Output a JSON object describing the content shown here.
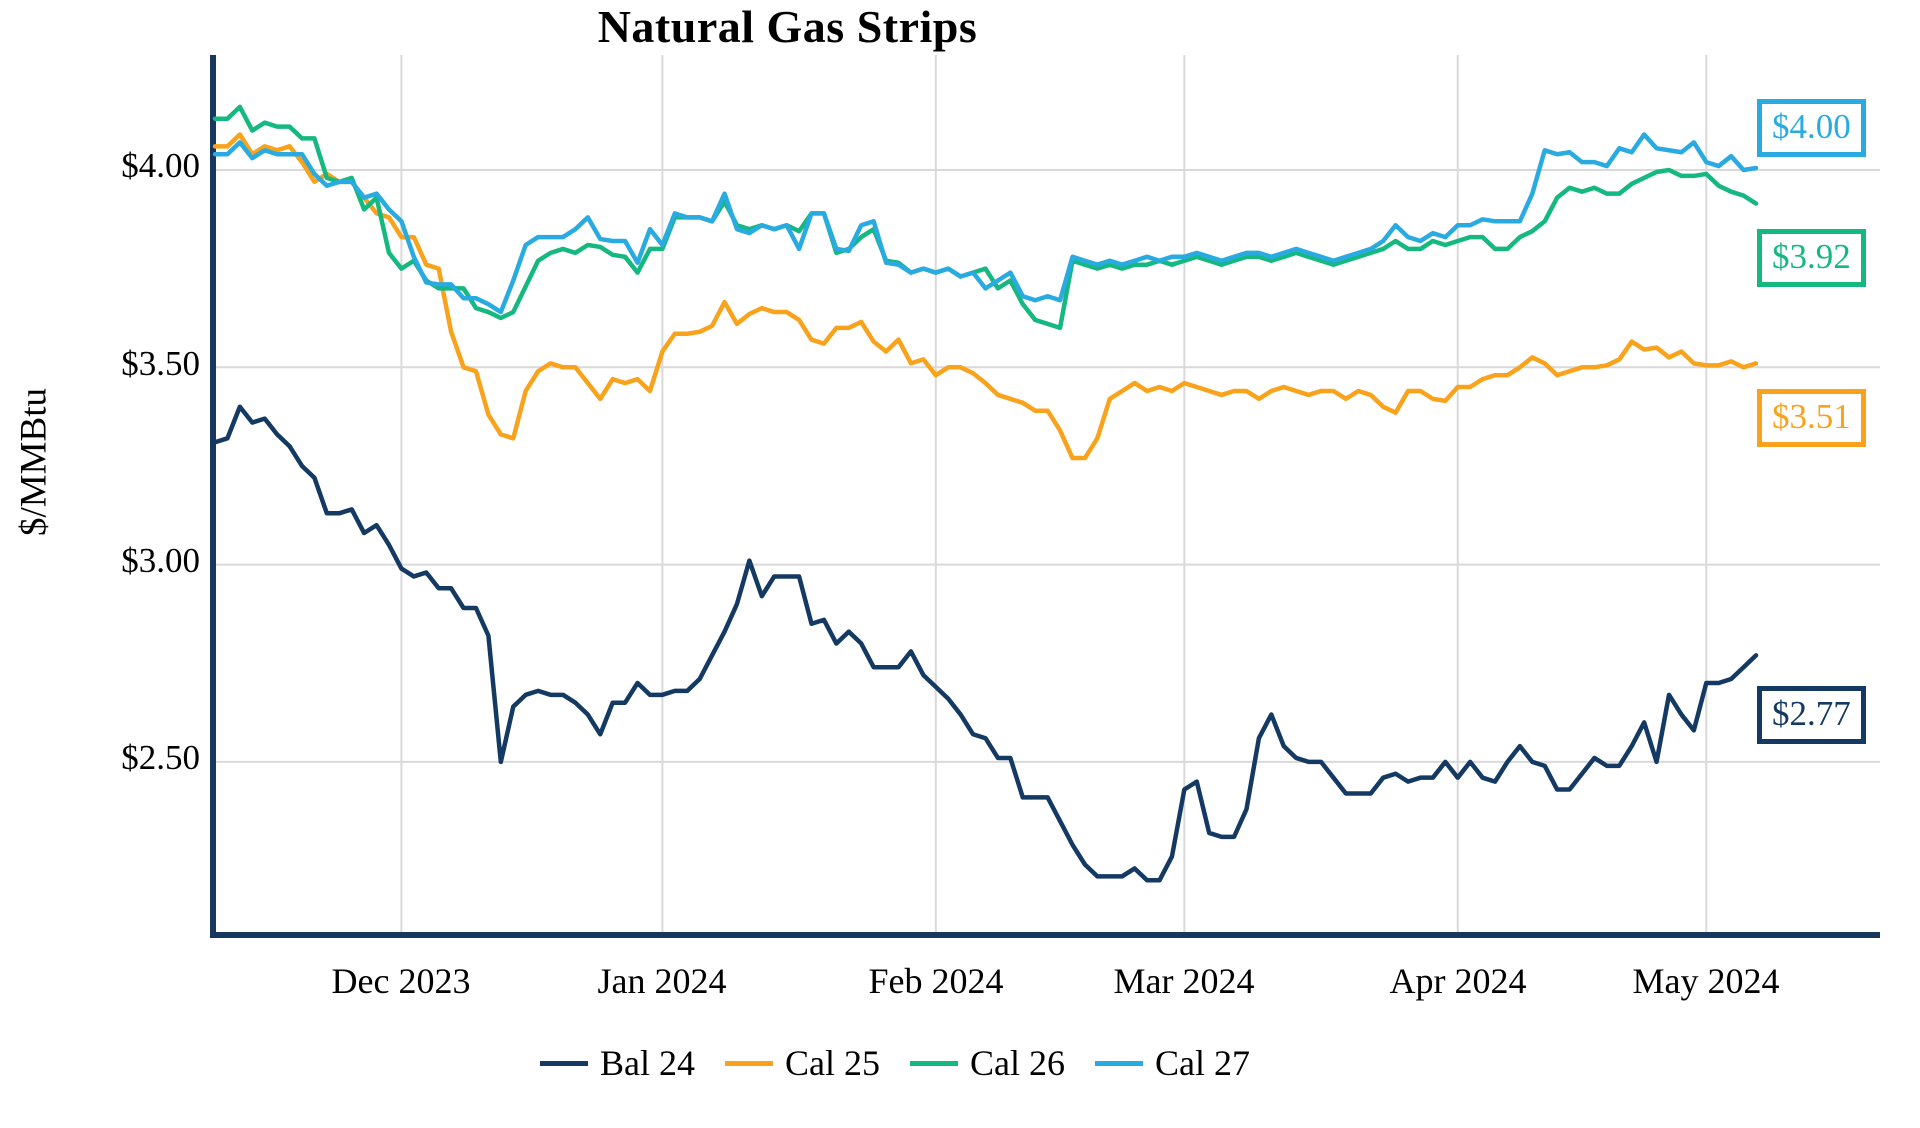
{
  "title": "Natural Gas Strips",
  "y_axis": {
    "label": "$/MMBtu",
    "ticks": [
      {
        "value": 4.0,
        "label": "$4.00"
      },
      {
        "value": 3.5,
        "label": "$3.50"
      },
      {
        "value": 3.0,
        "label": "$3.00"
      },
      {
        "value": 2.5,
        "label": "$2.50"
      }
    ]
  },
  "x_axis": {
    "ticks": [
      {
        "label": "Dec 2023",
        "index": 15
      },
      {
        "label": "Jan 2024",
        "index": 36
      },
      {
        "label": "Feb 2024",
        "index": 58
      },
      {
        "label": "Mar 2024",
        "index": 78
      },
      {
        "label": "Apr 2024",
        "index": 100
      },
      {
        "label": "May 2024",
        "index": 120
      }
    ]
  },
  "chart_data": {
    "type": "line",
    "title": "Natural Gas Strips",
    "xlabel": "",
    "ylabel": "$/MMBtu",
    "ylim": [
      2.0,
      4.3
    ],
    "x_range": [
      0,
      124
    ],
    "grid": true,
    "legend_position": "bottom",
    "axis_color": "#17375E",
    "grid_color": "#D9D9D9",
    "series": [
      {
        "name": "Bal 24",
        "color": "#143A63",
        "end_label": "$2.77",
        "values": [
          3.31,
          3.32,
          3.4,
          3.36,
          3.37,
          3.33,
          3.3,
          3.25,
          3.22,
          3.13,
          3.13,
          3.14,
          3.08,
          3.1,
          3.05,
          2.99,
          2.97,
          2.98,
          2.94,
          2.94,
          2.89,
          2.89,
          2.82,
          2.5,
          2.64,
          2.67,
          2.68,
          2.67,
          2.67,
          2.65,
          2.62,
          2.57,
          2.65,
          2.65,
          2.7,
          2.67,
          2.67,
          2.68,
          2.68,
          2.71,
          2.77,
          2.83,
          2.9,
          3.01,
          2.92,
          2.97,
          2.97,
          2.97,
          2.85,
          2.86,
          2.8,
          2.83,
          2.8,
          2.74,
          2.74,
          2.74,
          2.78,
          2.72,
          2.69,
          2.66,
          2.62,
          2.57,
          2.56,
          2.51,
          2.51,
          2.41,
          2.41,
          2.41,
          2.35,
          2.29,
          2.24,
          2.21,
          2.21,
          2.21,
          2.23,
          2.2,
          2.2,
          2.26,
          2.43,
          2.45,
          2.32,
          2.31,
          2.31,
          2.38,
          2.56,
          2.62,
          2.54,
          2.51,
          2.5,
          2.5,
          2.46,
          2.42,
          2.42,
          2.42,
          2.46,
          2.47,
          2.45,
          2.46,
          2.46,
          2.5,
          2.46,
          2.5,
          2.46,
          2.45,
          2.5,
          2.54,
          2.5,
          2.49,
          2.43,
          2.43,
          2.47,
          2.51,
          2.49,
          2.49,
          2.54,
          2.6,
          2.5,
          2.67,
          2.62,
          2.58,
          2.7,
          2.7,
          2.71,
          2.74,
          2.77
        ]
      },
      {
        "name": "Cal 25",
        "color": "#F9A21B",
        "end_label": "$3.51",
        "values": [
          4.06,
          4.06,
          4.09,
          4.04,
          4.06,
          4.05,
          4.06,
          4.02,
          3.97,
          3.99,
          3.97,
          3.97,
          3.93,
          3.89,
          3.88,
          3.83,
          3.83,
          3.76,
          3.75,
          3.59,
          3.5,
          3.49,
          3.38,
          3.33,
          3.32,
          3.44,
          3.49,
          3.51,
          3.5,
          3.5,
          3.46,
          3.42,
          3.47,
          3.46,
          3.47,
          3.44,
          3.54,
          3.585,
          3.585,
          3.59,
          3.605,
          3.665,
          3.61,
          3.635,
          3.65,
          3.64,
          3.64,
          3.62,
          3.57,
          3.56,
          3.6,
          3.6,
          3.615,
          3.565,
          3.54,
          3.57,
          3.51,
          3.52,
          3.48,
          3.5,
          3.5,
          3.485,
          3.46,
          3.43,
          3.42,
          3.41,
          3.39,
          3.39,
          3.34,
          3.27,
          3.27,
          3.32,
          3.42,
          3.44,
          3.46,
          3.44,
          3.45,
          3.44,
          3.46,
          3.45,
          3.44,
          3.43,
          3.44,
          3.44,
          3.42,
          3.44,
          3.45,
          3.44,
          3.43,
          3.44,
          3.44,
          3.42,
          3.44,
          3.43,
          3.4,
          3.385,
          3.44,
          3.44,
          3.42,
          3.415,
          3.45,
          3.45,
          3.47,
          3.48,
          3.48,
          3.5,
          3.525,
          3.51,
          3.48,
          3.49,
          3.5,
          3.5,
          3.505,
          3.52,
          3.565,
          3.545,
          3.55,
          3.525,
          3.54,
          3.51,
          3.505,
          3.505,
          3.515,
          3.5,
          3.51
        ]
      },
      {
        "name": "Cal 26",
        "color": "#15B87F",
        "end_label": "$3.92",
        "values": [
          4.13,
          4.13,
          4.16,
          4.1,
          4.12,
          4.11,
          4.11,
          4.08,
          4.08,
          3.98,
          3.97,
          3.98,
          3.9,
          3.93,
          3.79,
          3.75,
          3.77,
          3.72,
          3.7,
          3.7,
          3.7,
          3.65,
          3.64,
          3.625,
          3.64,
          3.705,
          3.77,
          3.79,
          3.8,
          3.79,
          3.81,
          3.805,
          3.785,
          3.78,
          3.74,
          3.8,
          3.8,
          3.88,
          3.88,
          3.88,
          3.87,
          3.92,
          3.86,
          3.85,
          3.86,
          3.85,
          3.86,
          3.845,
          3.89,
          3.89,
          3.79,
          3.8,
          3.83,
          3.85,
          3.77,
          3.765,
          3.74,
          3.75,
          3.74,
          3.75,
          3.73,
          3.74,
          3.75,
          3.7,
          3.72,
          3.66,
          3.62,
          3.61,
          3.6,
          3.77,
          3.76,
          3.75,
          3.76,
          3.75,
          3.76,
          3.76,
          3.77,
          3.76,
          3.77,
          3.78,
          3.77,
          3.76,
          3.77,
          3.78,
          3.78,
          3.77,
          3.78,
          3.79,
          3.78,
          3.77,
          3.76,
          3.77,
          3.78,
          3.79,
          3.8,
          3.82,
          3.8,
          3.8,
          3.82,
          3.81,
          3.82,
          3.83,
          3.83,
          3.8,
          3.8,
          3.83,
          3.845,
          3.87,
          3.93,
          3.955,
          3.945,
          3.955,
          3.94,
          3.94,
          3.965,
          3.98,
          3.995,
          4.0,
          3.985,
          3.985,
          3.99,
          3.96,
          3.945,
          3.935,
          3.915
        ]
      },
      {
        "name": "Cal 27",
        "color": "#29ABE2",
        "end_label": "$4.00",
        "values": [
          4.04,
          4.04,
          4.07,
          4.03,
          4.05,
          4.04,
          4.04,
          4.04,
          3.99,
          3.96,
          3.97,
          3.97,
          3.93,
          3.94,
          3.9,
          3.87,
          3.78,
          3.715,
          3.71,
          3.71,
          3.675,
          3.675,
          3.66,
          3.64,
          3.72,
          3.81,
          3.83,
          3.83,
          3.83,
          3.85,
          3.88,
          3.825,
          3.82,
          3.82,
          3.765,
          3.85,
          3.81,
          3.89,
          3.88,
          3.88,
          3.87,
          3.94,
          3.85,
          3.84,
          3.86,
          3.85,
          3.86,
          3.8,
          3.89,
          3.89,
          3.8,
          3.795,
          3.86,
          3.87,
          3.765,
          3.76,
          3.74,
          3.75,
          3.74,
          3.75,
          3.73,
          3.74,
          3.7,
          3.72,
          3.74,
          3.68,
          3.67,
          3.68,
          3.67,
          3.78,
          3.77,
          3.76,
          3.77,
          3.76,
          3.77,
          3.78,
          3.77,
          3.78,
          3.78,
          3.79,
          3.78,
          3.77,
          3.78,
          3.79,
          3.79,
          3.78,
          3.79,
          3.8,
          3.79,
          3.78,
          3.77,
          3.78,
          3.79,
          3.8,
          3.82,
          3.86,
          3.83,
          3.82,
          3.84,
          3.83,
          3.86,
          3.86,
          3.875,
          3.87,
          3.87,
          3.87,
          3.94,
          4.05,
          4.04,
          4.045,
          4.02,
          4.02,
          4.01,
          4.055,
          4.045,
          4.09,
          4.055,
          4.05,
          4.045,
          4.07,
          4.02,
          4.01,
          4.035,
          4.0,
          4.005
        ]
      }
    ]
  }
}
